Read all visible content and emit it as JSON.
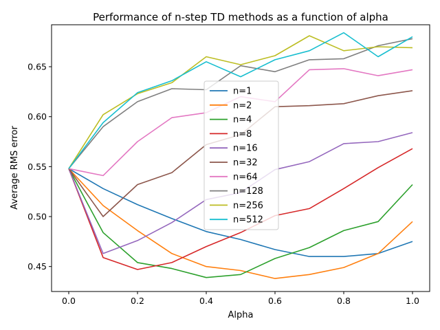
{
  "chart_data": {
    "type": "line",
    "title": "Performance of n-step TD methods as a function of alpha",
    "xlabel": "Alpha",
    "ylabel": "Average RMS error",
    "xlim": [
      -0.05,
      1.05
    ],
    "ylim": [
      0.425,
      0.692
    ],
    "xticks": [
      0.0,
      0.2,
      0.4,
      0.6,
      0.8,
      1.0
    ],
    "xtick_labels": [
      "0.0",
      "0.2",
      "0.4",
      "0.6",
      "0.8",
      "1.0"
    ],
    "yticks": [
      0.45,
      0.5,
      0.55,
      0.6,
      0.65
    ],
    "ytick_labels": [
      "0.45",
      "0.50",
      "0.55",
      "0.60",
      "0.65"
    ],
    "grid": false,
    "legend_position": "center",
    "x": [
      0.0,
      0.1,
      0.2,
      0.3,
      0.4,
      0.5,
      0.6,
      0.7,
      0.8,
      0.9,
      1.0
    ],
    "series": [
      {
        "name": "n=1",
        "color": "#1f77b4",
        "values": [
          0.548,
          0.528,
          0.512,
          0.498,
          0.485,
          0.477,
          0.467,
          0.46,
          0.46,
          0.463,
          0.475
        ]
      },
      {
        "name": "n=2",
        "color": "#ff7f0e",
        "values": [
          0.548,
          0.511,
          0.486,
          0.463,
          0.45,
          0.446,
          0.438,
          0.442,
          0.449,
          0.463,
          0.495
        ]
      },
      {
        "name": "n=4",
        "color": "#2ca02c",
        "values": [
          0.548,
          0.484,
          0.454,
          0.448,
          0.439,
          0.442,
          0.458,
          0.469,
          0.486,
          0.495,
          0.532
        ]
      },
      {
        "name": "n=8",
        "color": "#d62728",
        "values": [
          0.548,
          0.459,
          0.447,
          0.454,
          0.47,
          0.484,
          0.501,
          0.508,
          0.528,
          0.549,
          0.568
        ]
      },
      {
        "name": "n=16",
        "color": "#9467bd",
        "values": [
          0.548,
          0.463,
          0.476,
          0.494,
          0.517,
          0.524,
          0.547,
          0.555,
          0.573,
          0.575,
          0.584
        ]
      },
      {
        "name": "n=32",
        "color": "#8c564b",
        "values": [
          0.548,
          0.5,
          0.532,
          0.544,
          0.572,
          0.582,
          0.61,
          0.611,
          0.613,
          0.621,
          0.626
        ]
      },
      {
        "name": "n=64",
        "color": "#e377c2",
        "values": [
          0.548,
          0.541,
          0.575,
          0.599,
          0.604,
          0.62,
          0.615,
          0.647,
          0.648,
          0.641,
          0.647
        ]
      },
      {
        "name": "n=128",
        "color": "#7f7f7f",
        "values": [
          0.548,
          0.59,
          0.615,
          0.628,
          0.627,
          0.651,
          0.645,
          0.657,
          0.658,
          0.671,
          0.678
        ]
      },
      {
        "name": "n=256",
        "color": "#bcbd22",
        "values": [
          0.548,
          0.602,
          0.623,
          0.634,
          0.66,
          0.652,
          0.661,
          0.681,
          0.666,
          0.67,
          0.669
        ]
      },
      {
        "name": "n=512",
        "color": "#17becf",
        "values": [
          0.548,
          0.594,
          0.624,
          0.636,
          0.655,
          0.64,
          0.657,
          0.666,
          0.684,
          0.66,
          0.68
        ]
      }
    ]
  }
}
